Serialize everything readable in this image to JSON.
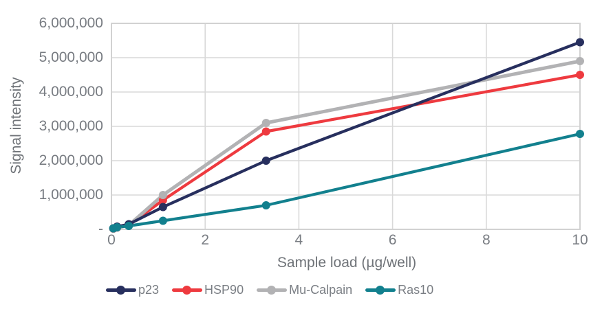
{
  "chart_data": {
    "type": "line",
    "title": "",
    "xlabel": "Sample load (µg/well)",
    "ylabel": "Signal intensity",
    "x": [
      0.04,
      0.12,
      0.37,
      1.1,
      3.3,
      10
    ],
    "series": [
      {
        "name": "p23",
        "color": "#272f5e",
        "values": [
          30000,
          80000,
          150000,
          650000,
          2000000,
          5450000
        ]
      },
      {
        "name": "HSP90",
        "color": "#ee3a3f",
        "values": [
          20000,
          50000,
          120000,
          850000,
          2850000,
          4500000
        ]
      },
      {
        "name": "Mu-Calpain",
        "color": "#b2b2b4",
        "values": [
          20000,
          50000,
          120000,
          1000000,
          3100000,
          4900000
        ]
      },
      {
        "name": "Ras10",
        "color": "#12808e",
        "values": [
          30000,
          60000,
          100000,
          250000,
          700000,
          2780000
        ]
      }
    ],
    "xlim": [
      0,
      10
    ],
    "ylim": [
      0,
      6000000
    ],
    "xticks": [
      0,
      2,
      4,
      6,
      8,
      10
    ],
    "xtick_labels": [
      "0",
      "2",
      "4",
      "6",
      "8",
      "10"
    ],
    "yticks": [
      6000000,
      5000000,
      4000000,
      3000000,
      2000000,
      1000000,
      0
    ],
    "ytick_labels": [
      "6,000,000",
      "5,000,000",
      "4,000,000",
      "3,000,000",
      "2,000,000",
      "1,000,000",
      "-"
    ],
    "grid": true,
    "legend_position": "bottom",
    "colors": {
      "grid": "#d9d9d9",
      "frame": "#d2d2d2",
      "tick_text": "#787c82",
      "axis_title_text": "#6f7378",
      "legend_text": "#7a7e84",
      "background": "#ffffff"
    }
  }
}
